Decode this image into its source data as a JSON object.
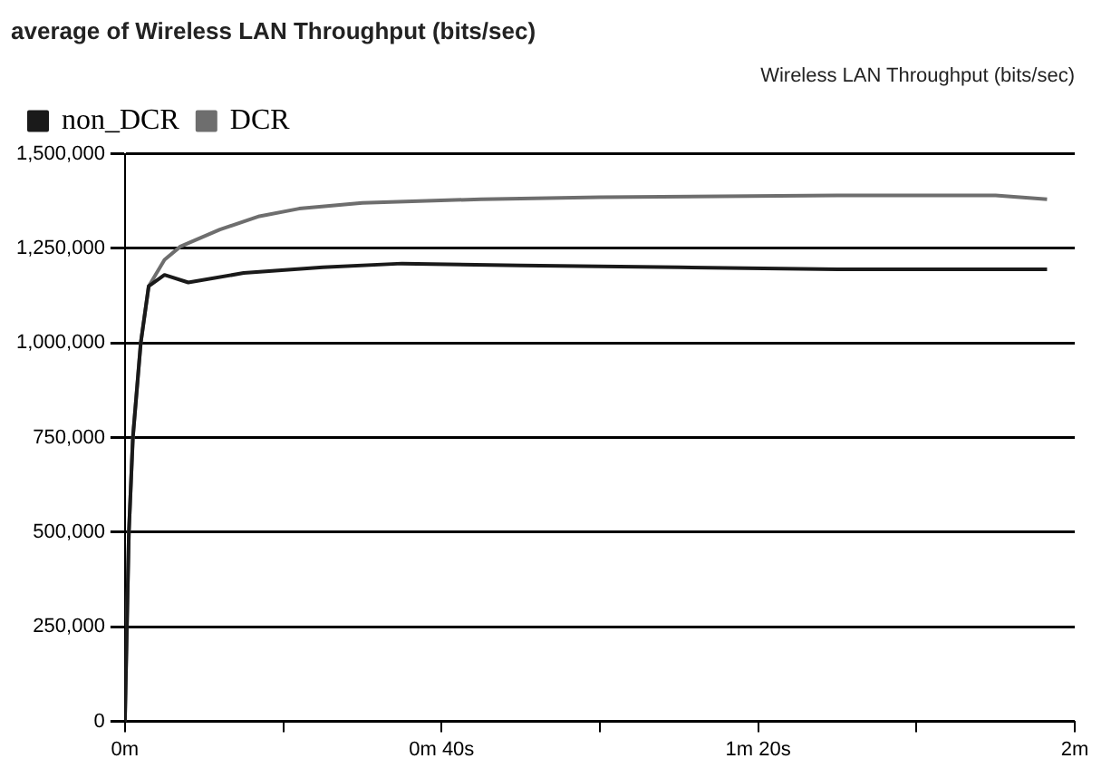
{
  "chart_data": {
    "type": "line",
    "title": "average of Wireless LAN Throughput (bits/sec)",
    "subtitle": "Wireless LAN Throughput (bits/sec)",
    "xlim": [
      0,
      2
    ],
    "xticks": [
      {
        "value": 0,
        "label": "0m"
      },
      {
        "value": 0.3333,
        "label": null
      },
      {
        "value": 0.6667,
        "label": "0m 40s"
      },
      {
        "value": 1,
        "label": null
      },
      {
        "value": 1.3333,
        "label": "1m 20s"
      },
      {
        "value": 1.6667,
        "label": null
      },
      {
        "value": 2,
        "label": "2m"
      }
    ],
    "ylim": [
      0,
      1500000
    ],
    "yticks": [
      {
        "value": 0,
        "label": "0"
      },
      {
        "value": 250000,
        "label": "250,000"
      },
      {
        "value": 500000,
        "label": "500,000"
      },
      {
        "value": 750000,
        "label": "750,000"
      },
      {
        "value": 1000000,
        "label": "1,000,000"
      },
      {
        "value": 1250000,
        "label": "1,250,000"
      },
      {
        "value": 1500000,
        "label": "1,500,000"
      }
    ],
    "grid": "y",
    "legend": "top left",
    "marker": "none",
    "line_style": "solid",
    "series": [
      {
        "name": "non_DCR",
        "color": "#1a1a1a",
        "x": [
          0,
          0.0083,
          0.0167,
          0.0333,
          0.05,
          0.0833,
          0.1333,
          0.25,
          0.4167,
          0.5833,
          0.8333,
          1.1667,
          1.5,
          1.9417
        ],
        "values": [
          0,
          500000,
          750000,
          1000000,
          1150000,
          1180000,
          1160000,
          1185000,
          1200000,
          1210000,
          1205000,
          1200000,
          1195000,
          1195000
        ]
      },
      {
        "name": "DCR",
        "color": "#6e6e6e",
        "x": [
          0,
          0.0083,
          0.0167,
          0.0333,
          0.05,
          0.0833,
          0.1167,
          0.2,
          0.2833,
          0.3667,
          0.5,
          0.75,
          1,
          1.5,
          1.8333,
          1.9417
        ],
        "values": [
          0,
          500000,
          750000,
          1000000,
          1150000,
          1220000,
          1255000,
          1300000,
          1335000,
          1355000,
          1370000,
          1380000,
          1385000,
          1390000,
          1390000,
          1380000
        ]
      }
    ]
  }
}
